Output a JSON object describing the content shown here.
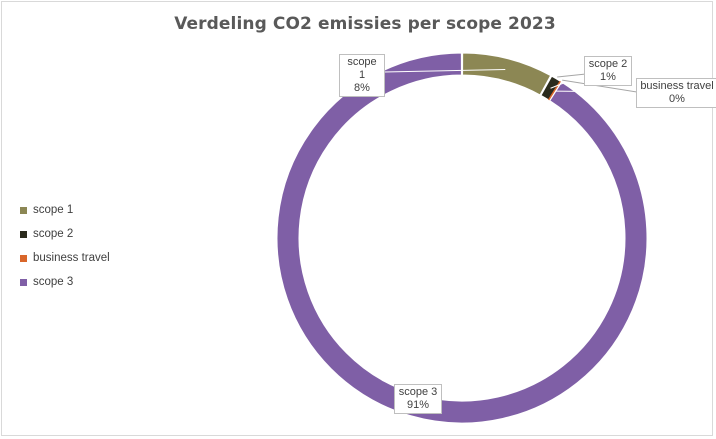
{
  "chart_data": {
    "type": "pie",
    "subtype": "doughnut",
    "title": "Verdeling CO2 emissies per scope 2023",
    "categories": [
      "scope 1",
      "scope 2",
      "business travel",
      "scope 3"
    ],
    "values": [
      8,
      1,
      0,
      91
    ],
    "value_labels": [
      "8%",
      "1%",
      "0%",
      "91%"
    ],
    "colors": [
      "#8c8754",
      "#2b2b1d",
      "#d9662a",
      "#7f5fa6"
    ],
    "legend_position": "left"
  }
}
